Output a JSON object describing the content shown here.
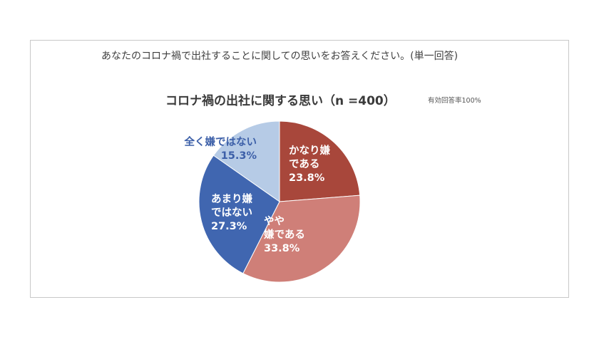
{
  "question": "あなたのコロナ禍で出社することに関しての思いをお答えください。(単一回答)",
  "note": "有効回答率100%",
  "chart_data": {
    "type": "pie",
    "title": "コロナ禍の出社に関する思い（n =400）",
    "slices": [
      {
        "label_lines": [
          "かなり嫌",
          "である"
        ],
        "value": 23.8,
        "value_label": "23.8%",
        "color": "#a8473b",
        "text_color": "#ffffff"
      },
      {
        "label_lines": [
          "やや",
          "嫌である"
        ],
        "value": 33.8,
        "value_label": "33.8%",
        "color": "#cf7f78",
        "text_color": "#ffffff"
      },
      {
        "label_lines": [
          "あまり嫌",
          "ではない"
        ],
        "value": 27.3,
        "value_label": "27.3%",
        "color": "#4066b0",
        "text_color": "#ffffff"
      },
      {
        "label_lines": [
          "全く嫌ではない"
        ],
        "value": 15.3,
        "value_label": "15.3%",
        "color": "#b6cbe6",
        "text_color": "#3c5fa8"
      }
    ]
  }
}
